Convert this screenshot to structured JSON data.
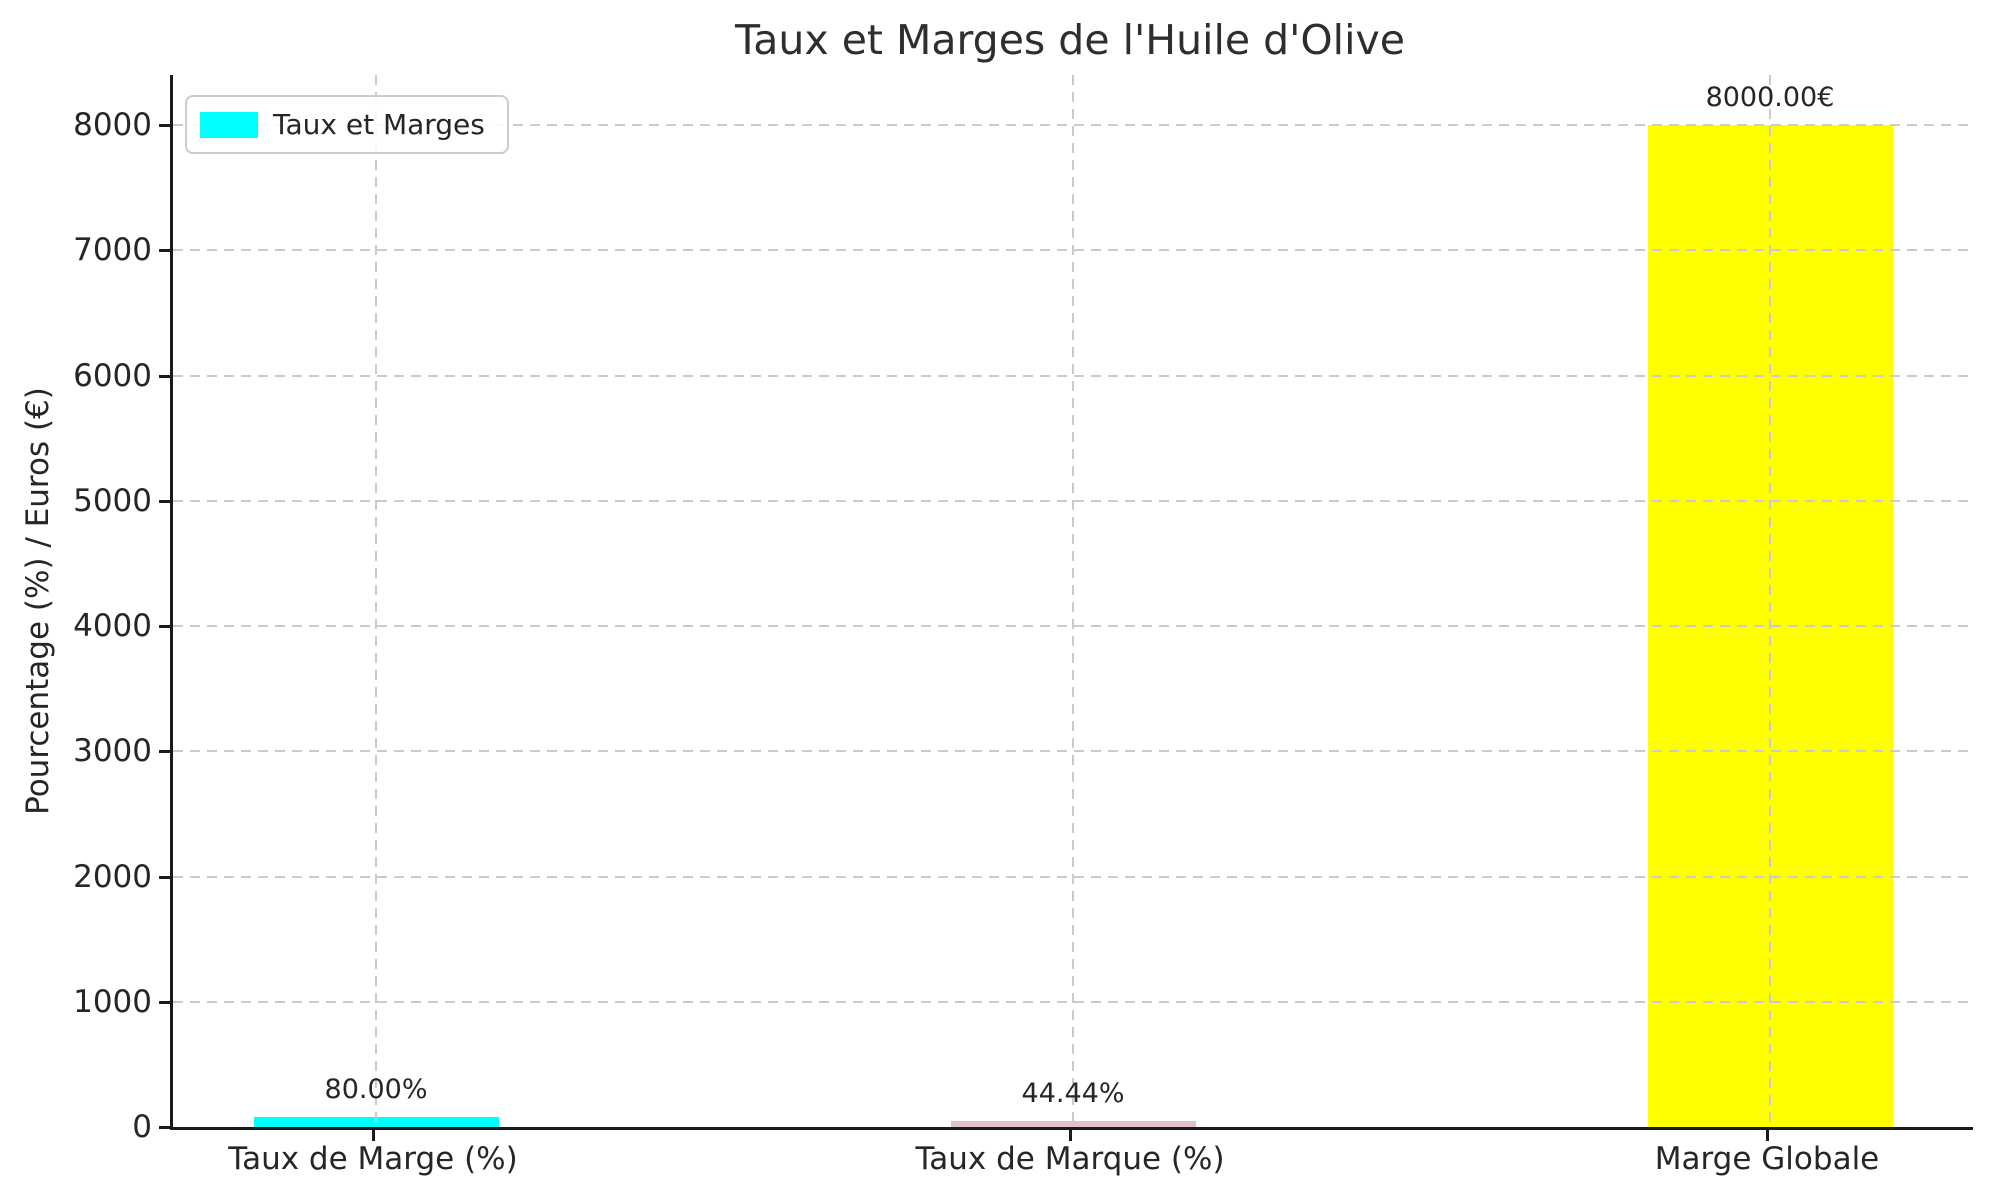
{
  "figure": {
    "background_color": "#ffffff",
    "text_color": "#262626",
    "axis_color": "#1a1a1a",
    "grid_color": "#cbcbcb"
  },
  "legend": {
    "label": "Taux et Marges",
    "swatch_color": "#00ffff",
    "position": "upper left"
  },
  "chart_data": {
    "type": "bar",
    "title": "Taux et Marges de l'Huile d'Olive",
    "xlabel": "",
    "ylabel": "Pourcentage (%) / Euros (€)",
    "categories": [
      "Taux de Marge (%)",
      "Taux de Marque (%)",
      "Marge Globale"
    ],
    "values": [
      80.0,
      44.44,
      8000.0
    ],
    "bar_value_labels": [
      "80.00%",
      "44.44%",
      "8000.00€"
    ],
    "bar_colors": [
      "#00ffff",
      "#e2c0c8",
      "#ffff00"
    ],
    "legend_entries": [
      "Taux et Marges"
    ],
    "legend_position": "upper left",
    "ylim": [
      0,
      8400
    ],
    "yticks": [
      0,
      1000,
      2000,
      3000,
      4000,
      5000,
      6000,
      7000,
      8000
    ],
    "grid": true,
    "grid_style": "dashed"
  }
}
